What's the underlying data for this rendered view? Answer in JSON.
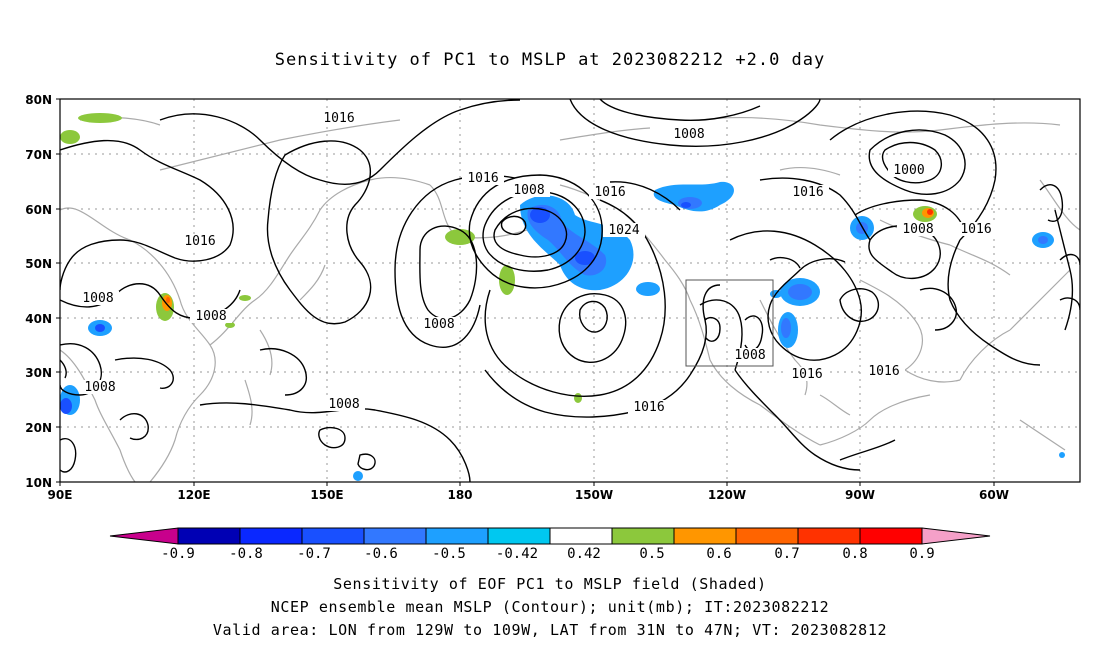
{
  "title": "Sensitivity of PC1 to MSLP at 2023082212 +2.0 day",
  "lat_labels": [
    "80N",
    "70N",
    "60N",
    "50N",
    "40N",
    "30N",
    "20N",
    "10N"
  ],
  "lon_labels": [
    "90E",
    "120E",
    "150E",
    "180",
    "150W",
    "120W",
    "90W",
    "60W"
  ],
  "contour_labels": [
    "1016",
    "1008",
    "1016",
    "1008",
    "1016",
    "1024",
    "1016",
    "1000",
    "1008",
    "1016",
    "1016",
    "1008",
    "1008",
    "1008",
    "1008",
    "1016",
    "1008",
    "1016",
    "1016",
    "1008"
  ],
  "colorbar": {
    "labels": [
      "-0.9",
      "-0.8",
      "-0.7",
      "-0.6",
      "-0.5",
      "-0.42",
      "0.42",
      "0.5",
      "0.6",
      "0.7",
      "0.8",
      "0.9"
    ],
    "colors": [
      "#c8008c",
      "#0000b4",
      "#0a28ff",
      "#1950ff",
      "#3278ff",
      "#1ea0ff",
      "#00c8f0",
      "#ffffff",
      "#8cc83c",
      "#ff9600",
      "#ff6400",
      "#ff3200",
      "#ff0000",
      "#f5a0c8"
    ]
  },
  "captions": [
    "Sensitivity of EOF PC1 to MSLP field (Shaded)",
    "NCEP ensemble mean MSLP (Contour); unit(mb); IT:2023082212",
    "Valid area: LON from 129W to 109W, LAT from 31N to 47N; VT: 2023082812"
  ]
}
